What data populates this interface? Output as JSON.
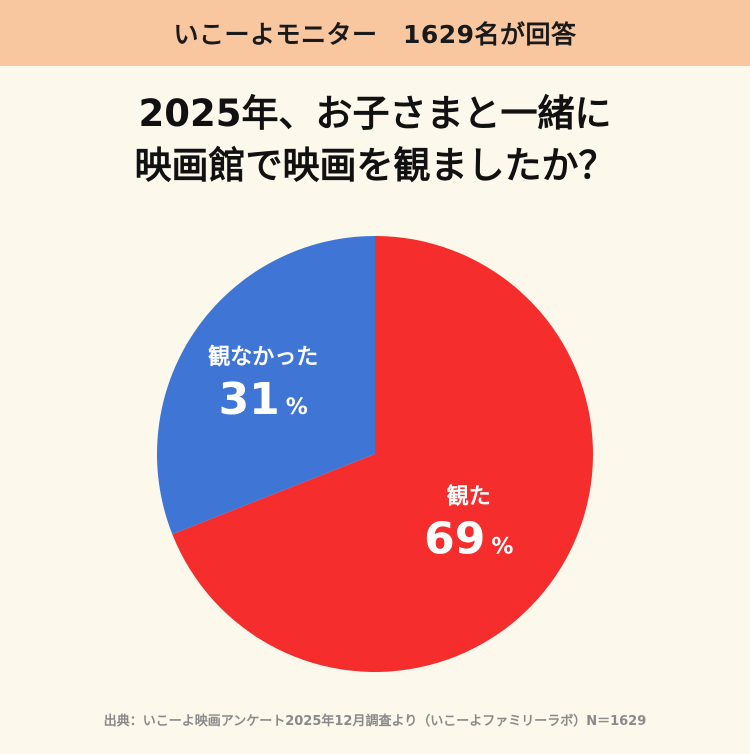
{
  "header": {
    "text": "いこーよモニター　1629名が回答"
  },
  "title": {
    "line1": "2025年、お子さまと一緒に",
    "line2": "映画館で映画を観ましたか？"
  },
  "chart_data": {
    "type": "pie",
    "slices": [
      {
        "label": "観た",
        "value": 69,
        "unit": "%",
        "color": "#f52d2d"
      },
      {
        "label": "観なかった",
        "value": 31,
        "unit": "%",
        "color": "#3f76d6"
      }
    ]
  },
  "source": {
    "text": "出典：いこーよ映画アンケート2025年12月調査より（いこーよファミリーラボ）N＝1629"
  }
}
